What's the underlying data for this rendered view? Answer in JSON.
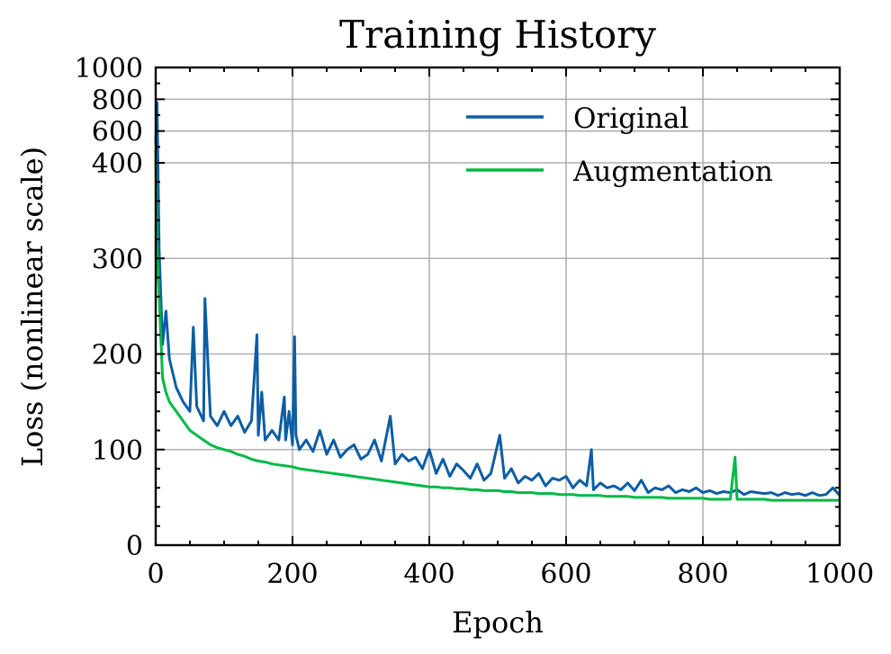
{
  "chart_data": {
    "type": "line",
    "title": "Training History",
    "xlabel": "Epoch",
    "ylabel": "Loss (nonlinear scale)",
    "xlim": [
      0,
      1000
    ],
    "ylim": [
      0,
      1000
    ],
    "y_scale": "nonlinear: linear 0-400 (0-400), then compressed 400-1000",
    "grid": true,
    "legend_position": "top-right",
    "x_ticks": [
      0,
      200,
      400,
      600,
      800,
      1000
    ],
    "x_tick_labels": [
      "0",
      "200",
      "400",
      "600",
      "800",
      "1000"
    ],
    "y_ticks": [
      0,
      100,
      200,
      300,
      400,
      600,
      800,
      1000
    ],
    "y_tick_labels": [
      "0",
      "100",
      "200",
      "300",
      "400",
      "600",
      "800",
      "1000"
    ],
    "series": [
      {
        "name": "Original",
        "color": "#0c5da5",
        "x": [
          0,
          2,
          5,
          10,
          15,
          20,
          30,
          40,
          50,
          55,
          60,
          70,
          72,
          80,
          90,
          100,
          110,
          120,
          130,
          140,
          148,
          150,
          155,
          160,
          170,
          180,
          188,
          190,
          195,
          200,
          203,
          205,
          210,
          220,
          230,
          240,
          250,
          260,
          270,
          280,
          290,
          300,
          310,
          320,
          330,
          343,
          350,
          360,
          370,
          380,
          390,
          400,
          410,
          420,
          430,
          440,
          450,
          460,
          470,
          480,
          490,
          503,
          510,
          520,
          530,
          540,
          550,
          560,
          570,
          580,
          590,
          600,
          610,
          620,
          630,
          637,
          640,
          650,
          660,
          670,
          680,
          690,
          700,
          710,
          720,
          730,
          740,
          750,
          760,
          770,
          780,
          790,
          800,
          810,
          820,
          830,
          840,
          850,
          860,
          870,
          880,
          890,
          900,
          910,
          920,
          930,
          940,
          950,
          960,
          970,
          980,
          990,
          1000
        ],
        "values": [
          520,
          780,
          310,
          210,
          245,
          195,
          165,
          150,
          140,
          228,
          145,
          130,
          258,
          135,
          125,
          140,
          125,
          135,
          118,
          130,
          220,
          115,
          160,
          110,
          120,
          110,
          155,
          110,
          140,
          105,
          218,
          115,
          100,
          110,
          98,
          120,
          95,
          110,
          92,
          100,
          105,
          90,
          95,
          110,
          88,
          135,
          85,
          95,
          88,
          92,
          80,
          100,
          75,
          90,
          72,
          85,
          78,
          70,
          85,
          68,
          75,
          115,
          70,
          80,
          65,
          72,
          68,
          75,
          62,
          70,
          68,
          72,
          60,
          68,
          62,
          100,
          58,
          65,
          60,
          62,
          58,
          65,
          57,
          68,
          55,
          60,
          58,
          62,
          55,
          58,
          56,
          60,
          55,
          57,
          54,
          56,
          55,
          58,
          53,
          56,
          55,
          54,
          55,
          52,
          55,
          53,
          54,
          52,
          55,
          52,
          53,
          60,
          52
        ]
      },
      {
        "name": "Augmentation",
        "color": "#00b945",
        "x": [
          0,
          2,
          5,
          10,
          15,
          20,
          30,
          40,
          50,
          60,
          70,
          80,
          90,
          100,
          110,
          120,
          130,
          140,
          150,
          160,
          170,
          180,
          190,
          200,
          210,
          220,
          230,
          240,
          250,
          260,
          270,
          280,
          290,
          300,
          310,
          320,
          330,
          340,
          350,
          360,
          370,
          380,
          390,
          400,
          410,
          420,
          430,
          440,
          450,
          460,
          470,
          480,
          490,
          500,
          510,
          520,
          530,
          540,
          550,
          560,
          570,
          580,
          590,
          600,
          610,
          620,
          630,
          640,
          650,
          660,
          670,
          680,
          690,
          700,
          710,
          720,
          730,
          740,
          750,
          760,
          770,
          780,
          790,
          800,
          810,
          820,
          830,
          840,
          847,
          850,
          860,
          870,
          880,
          890,
          900,
          910,
          920,
          930,
          940,
          950,
          960,
          970,
          980,
          990,
          1000
        ],
        "values": [
          480,
          310,
          260,
          175,
          160,
          150,
          140,
          130,
          120,
          115,
          110,
          105,
          102,
          100,
          98,
          95,
          93,
          90,
          88,
          87,
          85,
          84,
          83,
          82,
          80,
          79,
          78,
          77,
          76,
          75,
          74,
          73,
          72,
          71,
          70,
          69,
          68,
          67,
          66,
          65,
          64,
          63,
          62,
          61,
          61,
          60,
          60,
          59,
          59,
          58,
          58,
          57,
          57,
          57,
          56,
          56,
          55,
          55,
          55,
          54,
          54,
          54,
          53,
          53,
          53,
          52,
          52,
          52,
          52,
          51,
          51,
          51,
          51,
          50,
          50,
          50,
          50,
          50,
          49,
          49,
          49,
          49,
          49,
          49,
          48,
          48,
          48,
          48,
          92,
          48,
          48,
          48,
          48,
          48,
          47,
          47,
          47,
          47,
          47,
          47,
          47,
          47,
          47,
          47,
          47
        ]
      }
    ]
  }
}
